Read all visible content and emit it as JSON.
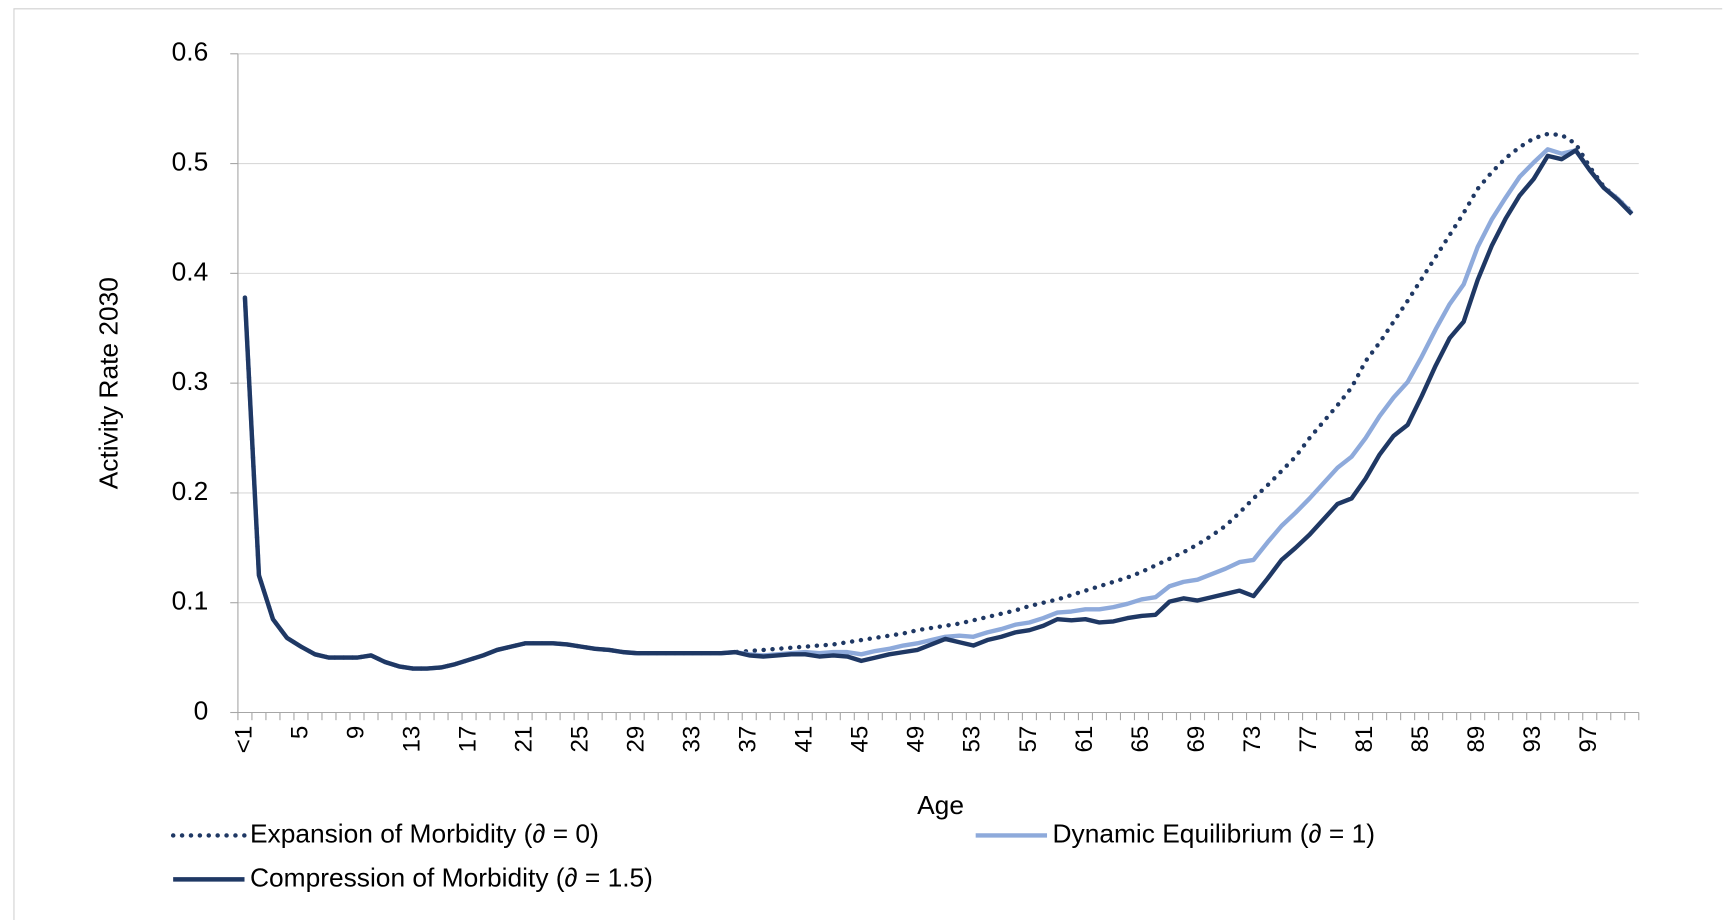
{
  "chart_data": {
    "type": "line",
    "x_label": "Age",
    "y_label": "Activity Rate 2030",
    "categories": [
      "<1",
      null,
      null,
      null,
      "5",
      null,
      null,
      null,
      "9",
      null,
      null,
      null,
      "13",
      null,
      null,
      null,
      "17",
      null,
      null,
      null,
      "21",
      null,
      null,
      null,
      "25",
      null,
      null,
      null,
      "29",
      null,
      null,
      null,
      "33",
      null,
      null,
      null,
      "37",
      null,
      null,
      null,
      "41",
      null,
      null,
      null,
      "45",
      null,
      null,
      null,
      "49",
      null,
      null,
      null,
      "53",
      null,
      null,
      null,
      "57",
      null,
      null,
      null,
      "61",
      null,
      null,
      null,
      "65",
      null,
      null,
      null,
      "69",
      null,
      null,
      null,
      "73",
      null,
      null,
      null,
      "77",
      null,
      null,
      null,
      "81",
      null,
      null,
      null,
      "85",
      null,
      null,
      null,
      "89",
      null,
      null,
      null,
      "93",
      null,
      null,
      null,
      "97",
      null,
      null,
      null
    ],
    "ylim": [
      0,
      0.6
    ],
    "yticks": [
      0,
      0.1,
      0.2,
      0.3,
      0.4,
      0.5,
      0.6
    ],
    "grid": true,
    "series": [
      {
        "name": "Expansion of Morbidity (∂ = 0)",
        "color": "#1f3864",
        "line_style": "dotted",
        "values": [
          0.378,
          0.125,
          0.085,
          0.068,
          0.06,
          0.053,
          0.05,
          0.05,
          0.05,
          0.052,
          0.046,
          0.042,
          0.04,
          0.04,
          0.041,
          0.044,
          0.048,
          0.052,
          0.057,
          0.06,
          0.063,
          0.063,
          0.063,
          0.062,
          0.06,
          0.058,
          0.057,
          0.055,
          0.054,
          0.054,
          0.054,
          0.054,
          0.054,
          0.054,
          0.054,
          0.055,
          0.056,
          0.057,
          0.058,
          0.059,
          0.06,
          0.061,
          0.062,
          0.064,
          0.066,
          0.068,
          0.07,
          0.072,
          0.075,
          0.077,
          0.079,
          0.081,
          0.084,
          0.087,
          0.09,
          0.093,
          0.097,
          0.1,
          0.103,
          0.107,
          0.111,
          0.115,
          0.119,
          0.123,
          0.128,
          0.134,
          0.14,
          0.146,
          0.153,
          0.161,
          0.17,
          0.182,
          0.195,
          0.207,
          0.22,
          0.233,
          0.25,
          0.265,
          0.28,
          0.296,
          0.32,
          0.337,
          0.356,
          0.375,
          0.395,
          0.415,
          0.435,
          0.455,
          0.477,
          0.492,
          0.505,
          0.515,
          0.523,
          0.527,
          0.526,
          0.518,
          0.497,
          0.479,
          0.468,
          0.456
        ]
      },
      {
        "name": "Dynamic Equilibrium (∂ = 1)",
        "color": "#8eaadb",
        "line_style": "solid",
        "values": [
          0.378,
          0.125,
          0.085,
          0.068,
          0.06,
          0.053,
          0.05,
          0.05,
          0.05,
          0.052,
          0.046,
          0.042,
          0.04,
          0.04,
          0.041,
          0.044,
          0.048,
          0.052,
          0.057,
          0.06,
          0.063,
          0.063,
          0.063,
          0.062,
          0.06,
          0.058,
          0.057,
          0.055,
          0.054,
          0.054,
          0.054,
          0.054,
          0.054,
          0.054,
          0.054,
          0.055,
          0.053,
          0.052,
          0.053,
          0.054,
          0.055,
          0.054,
          0.055,
          0.055,
          0.053,
          0.056,
          0.058,
          0.061,
          0.063,
          0.066,
          0.069,
          0.07,
          0.069,
          0.073,
          0.076,
          0.08,
          0.082,
          0.086,
          0.091,
          0.092,
          0.094,
          0.094,
          0.096,
          0.099,
          0.103,
          0.105,
          0.115,
          0.119,
          0.121,
          0.126,
          0.131,
          0.137,
          0.139,
          0.155,
          0.17,
          0.182,
          0.195,
          0.209,
          0.223,
          0.233,
          0.25,
          0.27,
          0.287,
          0.301,
          0.324,
          0.349,
          0.372,
          0.39,
          0.424,
          0.449,
          0.469,
          0.488,
          0.501,
          0.513,
          0.509,
          0.512,
          0.494,
          0.478,
          0.468,
          0.455
        ]
      },
      {
        "name": "Compression of Morbidity (∂ = 1.5)",
        "color": "#1f3864",
        "line_style": "solid",
        "values": [
          0.378,
          0.125,
          0.085,
          0.068,
          0.06,
          0.053,
          0.05,
          0.05,
          0.05,
          0.052,
          0.046,
          0.042,
          0.04,
          0.04,
          0.041,
          0.044,
          0.048,
          0.052,
          0.057,
          0.06,
          0.063,
          0.063,
          0.063,
          0.062,
          0.06,
          0.058,
          0.057,
          0.055,
          0.054,
          0.054,
          0.054,
          0.054,
          0.054,
          0.054,
          0.054,
          0.055,
          0.052,
          0.051,
          0.052,
          0.053,
          0.053,
          0.051,
          0.052,
          0.051,
          0.047,
          0.05,
          0.053,
          0.055,
          0.057,
          0.062,
          0.067,
          0.064,
          0.061,
          0.066,
          0.069,
          0.073,
          0.075,
          0.079,
          0.085,
          0.084,
          0.085,
          0.082,
          0.083,
          0.086,
          0.088,
          0.089,
          0.101,
          0.104,
          0.102,
          0.105,
          0.108,
          0.111,
          0.106,
          0.122,
          0.139,
          0.15,
          0.162,
          0.176,
          0.19,
          0.195,
          0.213,
          0.235,
          0.252,
          0.262,
          0.288,
          0.316,
          0.341,
          0.356,
          0.394,
          0.425,
          0.45,
          0.471,
          0.486,
          0.507,
          0.504,
          0.512,
          0.494,
          0.478,
          0.467,
          0.454
        ]
      }
    ]
  }
}
